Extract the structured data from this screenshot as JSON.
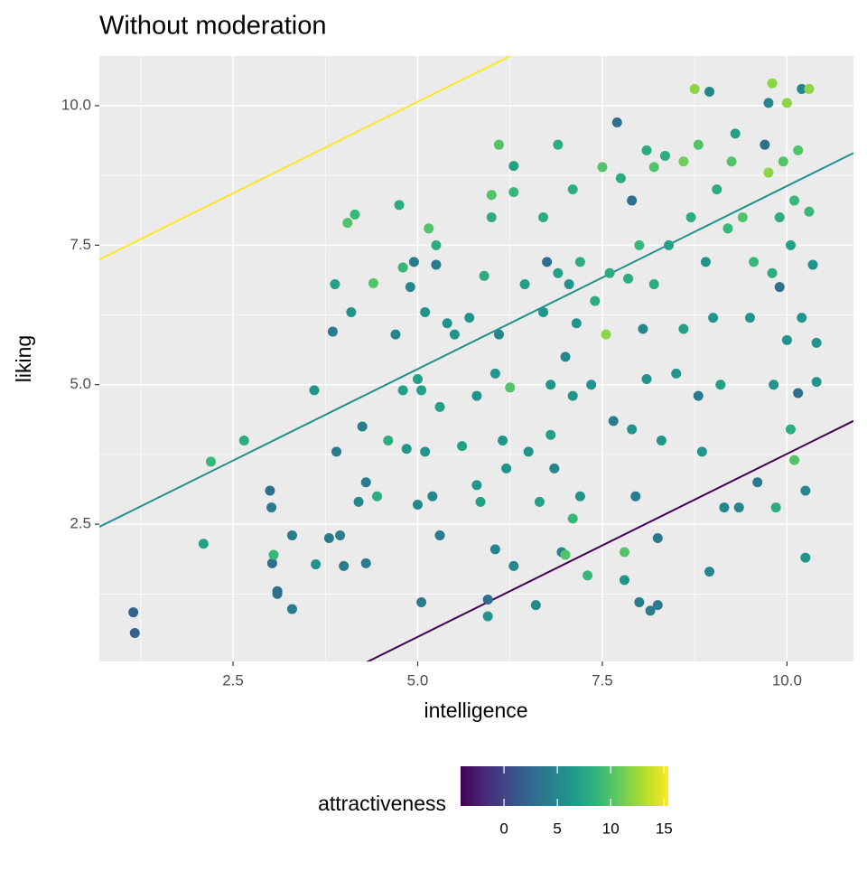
{
  "chart_data": {
    "type": "scatter",
    "title": "Without moderation",
    "xlabel": "intelligence",
    "ylabel": "liking",
    "legend_title": "attractiveness",
    "xlim": [
      0.69,
      10.9
    ],
    "ylim": [
      0.04,
      10.89
    ],
    "xticks": [
      2.5,
      5.0,
      7.5,
      10.0
    ],
    "yticks": [
      2.5,
      5.0,
      7.5,
      10.0
    ],
    "xtick_labels": [
      "2.5",
      "5.0",
      "7.5",
      "10.0"
    ],
    "ytick_labels": [
      "2.5",
      "5.0",
      "7.5",
      "10.0"
    ],
    "grid": true,
    "clim": [
      -4.07,
      15.4
    ],
    "cticks": [
      0,
      5,
      10,
      15
    ],
    "colormap": [
      "#440154",
      "#482878",
      "#3e4989",
      "#31688e",
      "#26828e",
      "#1f9e89",
      "#35b779",
      "#6ece58",
      "#b5de2b",
      "#fde725"
    ],
    "lines": [
      {
        "color": "#fde725",
        "intercept": 6.79,
        "slope": 0.656
      },
      {
        "color": "#21908c",
        "intercept": 2.0,
        "slope": 0.656
      },
      {
        "color": "#440154",
        "intercept": -2.8,
        "slope": 0.656
      }
    ],
    "x": [
      1.15,
      1.17,
      2.1,
      2.2,
      2.65,
      3.0,
      3.02,
      3.03,
      3.1,
      3.1,
      3.05,
      3.3,
      3.3,
      3.6,
      3.62,
      3.8,
      3.85,
      3.88,
      3.9,
      3.95,
      4.0,
      4.05,
      4.1,
      4.15,
      4.2,
      4.25,
      4.3,
      4.3,
      4.4,
      4.45,
      4.6,
      4.75,
      4.7,
      4.8,
      4.8,
      4.85,
      4.9,
      4.95,
      5.0,
      5.0,
      5.05,
      5.05,
      5.1,
      5.1,
      5.15,
      5.2,
      5.25,
      5.25,
      5.3,
      5.3,
      5.4,
      5.5,
      5.6,
      5.7,
      5.8,
      5.8,
      5.85,
      5.9,
      5.95,
      5.95,
      6.0,
      6.0,
      6.05,
      6.05,
      6.1,
      6.1,
      6.15,
      6.2,
      6.25,
      6.3,
      6.3,
      6.3,
      6.45,
      6.5,
      6.6,
      6.65,
      6.7,
      6.7,
      6.75,
      6.8,
      6.8,
      6.85,
      6.9,
      6.9,
      6.95,
      7.0,
      7.0,
      7.05,
      7.1,
      7.1,
      7.1,
      7.15,
      7.2,
      7.2,
      7.3,
      7.35,
      7.4,
      7.5,
      7.55,
      7.6,
      7.65,
      7.7,
      7.75,
      7.8,
      7.8,
      7.85,
      7.9,
      7.9,
      7.95,
      8.0,
      8.0,
      8.05,
      8.1,
      8.1,
      8.15,
      8.2,
      8.2,
      8.25,
      8.25,
      8.3,
      8.35,
      8.4,
      8.5,
      8.6,
      8.7,
      8.75,
      8.8,
      8.8,
      8.85,
      8.9,
      8.95,
      8.95,
      9.0,
      9.05,
      9.1,
      9.15,
      9.2,
      9.25,
      9.3,
      9.35,
      9.4,
      9.5,
      9.55,
      9.6,
      9.7,
      9.75,
      9.8,
      9.8,
      9.82,
      9.85,
      9.9,
      9.9,
      9.95,
      10.0,
      10.0,
      10.05,
      10.05,
      10.1,
      10.1,
      10.15,
      10.15,
      10.2,
      10.2,
      10.25,
      10.25,
      10.3,
      10.35,
      10.4,
      10.4,
      10.3,
      9.75,
      8.6
    ],
    "y": [
      0.92,
      0.55,
      2.15,
      3.62,
      4.0,
      3.1,
      2.8,
      1.8,
      1.3,
      1.25,
      1.95,
      0.98,
      2.3,
      4.9,
      1.78,
      2.25,
      5.95,
      6.8,
      3.8,
      2.3,
      1.75,
      7.9,
      6.3,
      8.05,
      2.9,
      4.25,
      3.25,
      1.8,
      6.82,
      3.0,
      4.0,
      8.22,
      5.9,
      7.1,
      4.9,
      3.85,
      6.75,
      7.2,
      2.85,
      5.1,
      4.9,
      1.1,
      3.8,
      6.3,
      7.8,
      3.0,
      7.5,
      7.15,
      4.6,
      2.3,
      6.1,
      5.9,
      3.9,
      6.2,
      4.8,
      3.2,
      2.9,
      6.95,
      1.15,
      0.85,
      8.0,
      8.4,
      5.2,
      2.05,
      9.3,
      5.9,
      4.0,
      3.5,
      4.95,
      8.92,
      8.45,
      1.75,
      6.8,
      3.8,
      1.05,
      2.9,
      8.0,
      6.3,
      7.2,
      5.0,
      4.1,
      3.5,
      9.3,
      7.0,
      2.0,
      1.95,
      5.5,
      6.8,
      8.5,
      4.8,
      2.6,
      6.1,
      7.2,
      3.0,
      1.58,
      5.0,
      6.5,
      8.9,
      5.9,
      7.0,
      4.35,
      9.7,
      8.7,
      2.0,
      1.5,
      6.9,
      8.3,
      4.2,
      3.0,
      1.1,
      7.5,
      6.0,
      9.2,
      5.1,
      0.95,
      8.9,
      6.8,
      1.05,
      2.25,
      4.0,
      9.1,
      7.5,
      5.2,
      6.0,
      8.0,
      10.3,
      9.3,
      4.8,
      3.8,
      7.2,
      1.65,
      10.25,
      6.2,
      8.5,
      5.0,
      2.8,
      7.8,
      9.0,
      9.5,
      2.8,
      8.0,
      6.2,
      7.2,
      3.25,
      9.3,
      10.05,
      10.4,
      7.0,
      5.0,
      2.8,
      8.0,
      6.75,
      9.0,
      10.05,
      5.8,
      7.5,
      4.2,
      8.3,
      3.65,
      4.85,
      9.2,
      10.3,
      6.2,
      3.1,
      1.9,
      8.1,
      7.15,
      5.75,
      5.05,
      10.3,
      8.8,
      9.0
    ],
    "color_values": [
      2,
      2,
      7,
      9,
      8,
      3,
      4,
      3,
      3,
      3,
      9,
      4,
      4,
      6,
      6,
      4,
      4,
      7,
      4,
      4,
      4,
      10,
      6,
      9,
      5,
      4,
      4,
      4,
      10,
      8,
      8,
      8,
      5,
      9,
      7,
      6,
      5,
      4,
      5,
      7,
      7,
      4,
      6,
      6,
      10,
      5,
      8,
      4,
      7,
      4,
      6,
      6,
      7,
      6,
      6,
      6,
      7,
      8,
      3,
      6,
      8,
      10,
      6,
      5,
      10,
      5,
      6,
      6,
      10,
      7,
      9,
      5,
      7,
      6,
      5,
      7,
      8,
      6,
      3,
      6,
      7,
      5,
      8,
      7,
      5,
      10,
      5,
      6,
      8,
      6,
      9,
      6,
      8,
      6,
      9,
      6,
      8,
      10,
      12,
      8,
      4,
      3,
      8,
      10,
      6,
      8,
      3,
      6,
      4,
      4,
      9,
      5,
      8,
      6,
      4,
      10,
      8,
      4,
      4,
      6,
      8,
      7,
      6,
      7,
      8,
      12,
      10,
      4,
      6,
      6,
      5,
      5,
      6,
      8,
      7,
      5,
      9,
      10,
      7,
      5,
      10,
      6,
      9,
      4,
      3,
      5,
      12,
      8,
      6,
      8,
      8,
      3,
      10,
      12,
      6,
      7,
      8,
      9,
      10,
      3,
      10,
      5,
      6,
      5,
      6,
      9,
      6,
      6,
      6,
      12,
      12,
      11
    ]
  }
}
